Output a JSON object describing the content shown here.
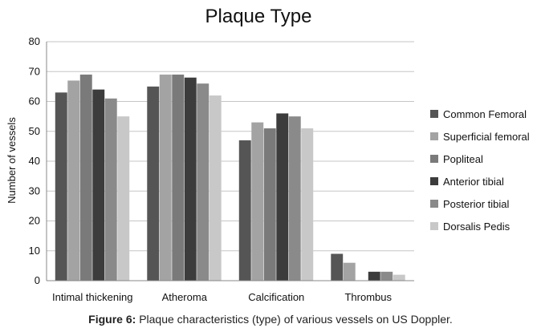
{
  "caption": {
    "label": "Figure 6:",
    "text": "Plaque characteristics (type) of various vessels on US Doppler."
  },
  "chart_data": {
    "type": "bar",
    "title": "Plaque Type",
    "xlabel": "",
    "ylabel": "Number of vessels",
    "ylim": [
      0,
      80
    ],
    "yticks": [
      0,
      10,
      20,
      30,
      40,
      50,
      60,
      70,
      80
    ],
    "grid": true,
    "legend_position": "right",
    "categories": [
      "Intimal thickening",
      "Atheroma",
      "Calcification",
      "Thrombus"
    ],
    "series": [
      {
        "name": "Common Femoral",
        "values": [
          63,
          65,
          47,
          9
        ],
        "color": "#555555"
      },
      {
        "name": "Superficial femoral",
        "values": [
          67,
          69,
          53,
          6
        ],
        "color": "#a3a3a3"
      },
      {
        "name": "Popliteal",
        "values": [
          69,
          69,
          51,
          0
        ],
        "color": "#7a7a7a"
      },
      {
        "name": "Anterior tibial",
        "values": [
          64,
          68,
          56,
          3
        ],
        "color": "#3c3c3c"
      },
      {
        "name": "Posterior tibial",
        "values": [
          61,
          66,
          55,
          3
        ],
        "color": "#8a8a8a"
      },
      {
        "name": "Dorsalis Pedis",
        "values": [
          55,
          62,
          51,
          2
        ],
        "color": "#c8c8c8"
      }
    ]
  }
}
